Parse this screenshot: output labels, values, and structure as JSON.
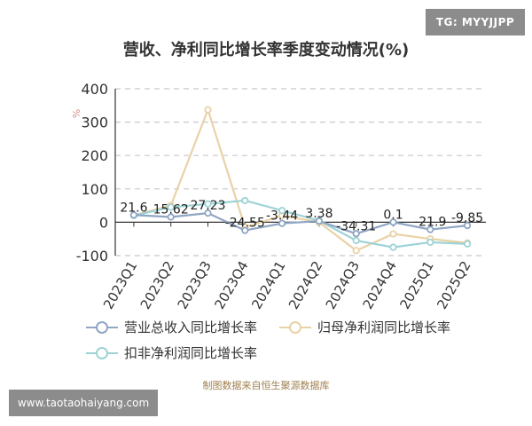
{
  "watermark_top": "TG: MYYJJPP",
  "watermark_bottom": "www.taotaohaiyang.com",
  "source_note": "制图数据来自恒生聚源数据库",
  "chart_data": {
    "type": "line",
    "title": "营收、净利同比增长率季度变动情况(%)",
    "ylabel": "%",
    "ylim": [
      -100,
      400
    ],
    "yticks": [
      -100,
      0,
      100,
      200,
      300,
      400
    ],
    "grid": true,
    "legend_position": "bottom",
    "categories": [
      "2023Q1",
      "2023Q2",
      "2023Q3",
      "2023Q4",
      "2024Q1",
      "2024Q2",
      "2024Q3",
      "2024Q4",
      "2025Q1",
      "2025Q2"
    ],
    "series": [
      {
        "name": "营业总收入同比增长率",
        "color": "#8fa6c4",
        "values": [
          21.6,
          15.62,
          27.23,
          -24.55,
          -3.44,
          3.38,
          -34.31,
          0.1,
          -21.9,
          -9.85
        ]
      },
      {
        "name": "归母净利润同比增长率",
        "color": "#e9d2a6",
        "values": [
          21.0,
          50.0,
          337.0,
          -15.0,
          20.0,
          0.0,
          -85.0,
          -35.0,
          -50.0,
          -62.0
        ]
      },
      {
        "name": "扣非净利润同比增长率",
        "color": "#9ed3d6",
        "values": [
          20.0,
          45.0,
          55.0,
          65.0,
          35.0,
          5.0,
          -55.0,
          -75.0,
          -60.0,
          -65.0
        ]
      }
    ],
    "data_labels": [
      "21.6",
      "15.62",
      "27.23",
      "-24.55",
      "-3.44",
      "3.38",
      "-34.31",
      "0.1",
      "-21.9",
      "-9.85"
    ]
  }
}
